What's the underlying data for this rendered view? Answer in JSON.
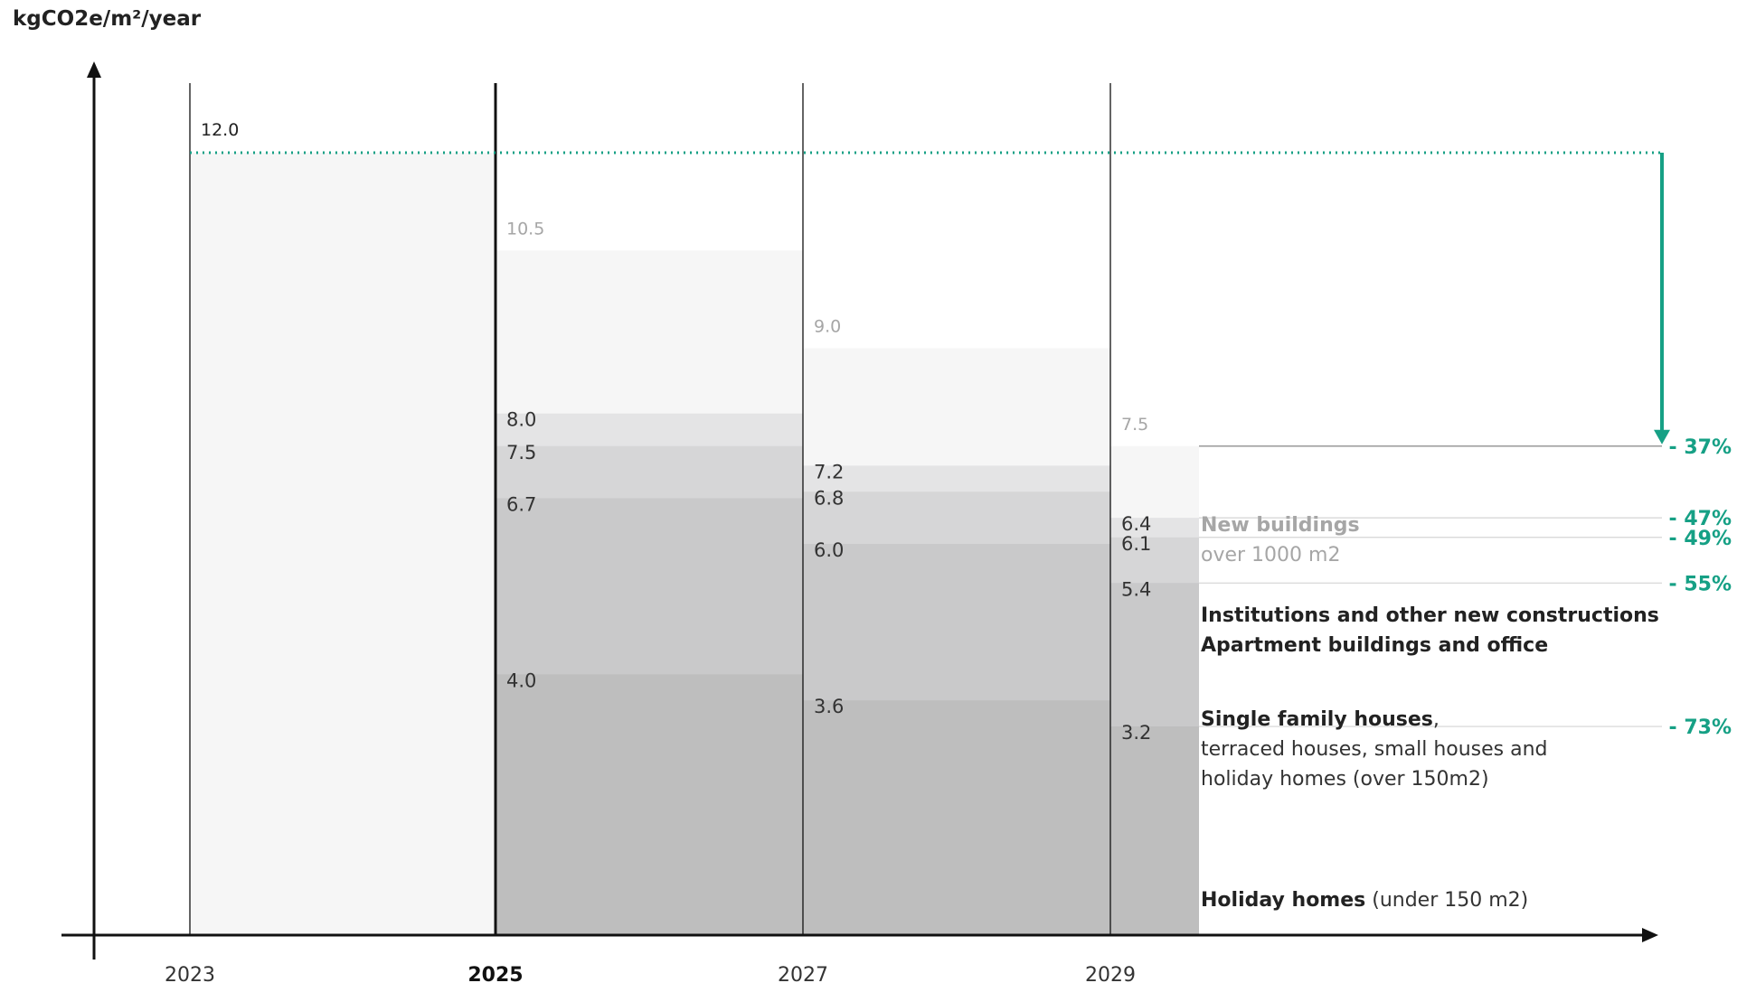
{
  "chart_data": {
    "type": "bar",
    "ylabel": "kgCO2e/m²/year",
    "xlabel": "",
    "ylim": [
      0,
      13.5
    ],
    "years": [
      "2023",
      "2025",
      "2027",
      "2029"
    ],
    "highlight_year": "2025",
    "baseline": {
      "value": 12.0,
      "label": "12.0",
      "color": "#16a085"
    },
    "columns": [
      {
        "year": "2023",
        "values": [
          12.0
        ],
        "labels": [
          ""
        ]
      },
      {
        "year": "2025",
        "values": [
          10.5,
          8.0,
          7.5,
          6.7,
          4.0
        ],
        "labels": [
          "10.5",
          "8.0",
          "7.5",
          "6.7",
          "4.0"
        ]
      },
      {
        "year": "2027",
        "values": [
          9.0,
          7.2,
          6.8,
          6.0,
          3.6
        ],
        "labels": [
          "9.0",
          "7.2",
          "6.8",
          "6.0",
          "3.6"
        ]
      },
      {
        "year": "2029",
        "values": [
          7.5,
          6.4,
          6.1,
          5.4,
          3.2
        ],
        "labels": [
          "7.5",
          "6.4",
          "6.1",
          "5.4",
          "3.2"
        ]
      }
    ],
    "categories": [
      {
        "value": 7.5,
        "title": "New buildings",
        "subtitle": [
          "over 1000 m2"
        ],
        "reduction": "- 37%",
        "muted": true
      },
      {
        "value": 6.4,
        "title": "Institutions and other new constructions",
        "subtitle": [],
        "reduction": "- 47%",
        "muted": false
      },
      {
        "value": 6.1,
        "title": "Apartment buildings and office",
        "subtitle": [],
        "reduction": "- 49%",
        "muted": false
      },
      {
        "value": 5.4,
        "title": "Single family houses",
        "title_suffix": ",",
        "subtitle": [
          "terraced houses, small houses and",
          "holiday homes (over 150m2)"
        ],
        "reduction": "- 55%",
        "muted": false
      },
      {
        "value": 3.2,
        "title": "Holiday homes",
        "title_suffix": " (under 150 m2)",
        "subtitle": [],
        "reduction": "- 73%",
        "muted": false
      }
    ],
    "colors": {
      "accent": "#16a085",
      "band_fills": [
        "#f6f6f6",
        "#e4e4e5",
        "#d6d6d7",
        "#c9c9ca",
        "#bebebe"
      ],
      "axis": "#111111"
    }
  }
}
